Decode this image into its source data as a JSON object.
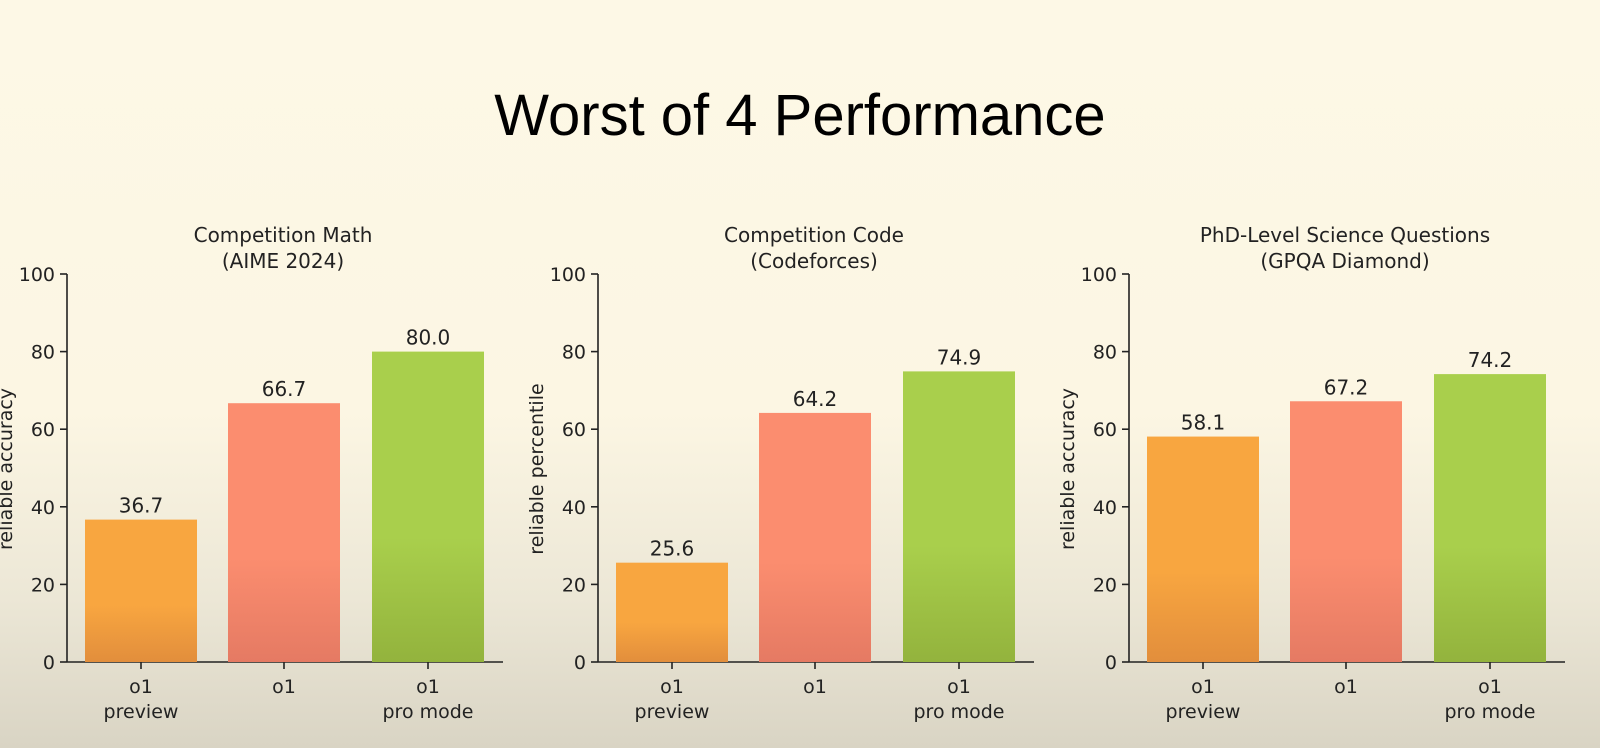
{
  "slide": {
    "title": "Worst of 4 Performance"
  },
  "colors": {
    "o1-preview": [
      "#f8a640",
      "#e28e3c"
    ],
    "o1": [
      "#fb8d6f",
      "#e57a63"
    ],
    "o1-pro-mode": [
      "#a9cf4c",
      "#93b33d"
    ],
    "axis": "#222222"
  },
  "chart_data": [
    {
      "type": "bar",
      "title": [
        "Competition Math",
        "(AIME 2024)"
      ],
      "ylabel": "reliable accuracy",
      "ylim": [
        0,
        100
      ],
      "yticks": [
        0,
        20,
        40,
        60,
        80,
        100
      ],
      "categories": [
        [
          "o1",
          "preview"
        ],
        [
          "o1"
        ],
        [
          "o1",
          "pro mode"
        ]
      ],
      "values": [
        36.7,
        66.7,
        80.0
      ],
      "labels": [
        "36.7",
        "66.7",
        "80.0"
      ]
    },
    {
      "type": "bar",
      "title": [
        "Competition Code",
        "(Codeforces)"
      ],
      "ylabel": "reliable percentile",
      "ylim": [
        0,
        100
      ],
      "yticks": [
        0,
        20,
        40,
        60,
        80,
        100
      ],
      "categories": [
        [
          "o1",
          "preview"
        ],
        [
          "o1"
        ],
        [
          "o1",
          "pro mode"
        ]
      ],
      "values": [
        25.6,
        64.2,
        74.9
      ],
      "labels": [
        "25.6",
        "64.2",
        "74.9"
      ]
    },
    {
      "type": "bar",
      "title": [
        "PhD-Level Science Questions",
        "(GPQA Diamond)"
      ],
      "ylabel": "reliable accuracy",
      "ylim": [
        0,
        100
      ],
      "yticks": [
        0,
        20,
        40,
        60,
        80,
        100
      ],
      "categories": [
        [
          "o1",
          "preview"
        ],
        [
          "o1"
        ],
        [
          "o1",
          "pro mode"
        ]
      ],
      "values": [
        58.1,
        67.2,
        74.2
      ],
      "labels": [
        "58.1",
        "67.2",
        "74.2"
      ]
    }
  ]
}
